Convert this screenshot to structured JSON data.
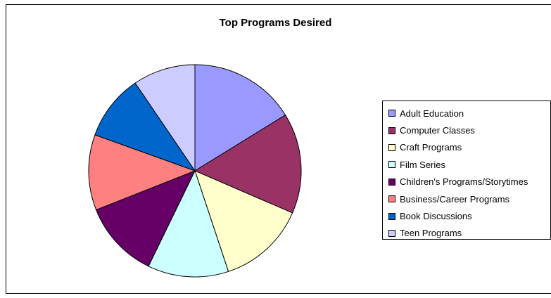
{
  "chart_data": {
    "type": "pie",
    "title": "Top Programs Desired",
    "categories": [
      "Adult Education",
      "Computer Classes",
      "Craft Programs",
      "Film Series",
      "Children's Programs/Storytimes",
      "Business/Career Programs",
      "Book Discussions",
      "Teen Programs"
    ],
    "values": [
      16.2,
      15.3,
      13.4,
      12.3,
      11.8,
      11.5,
      10.0,
      9.5
    ],
    "colors": [
      "#9999FF",
      "#993366",
      "#FFFFCC",
      "#CCFFFF",
      "#660066",
      "#FF8080",
      "#0066CC",
      "#CCCCFF"
    ],
    "legend_position": "right"
  }
}
